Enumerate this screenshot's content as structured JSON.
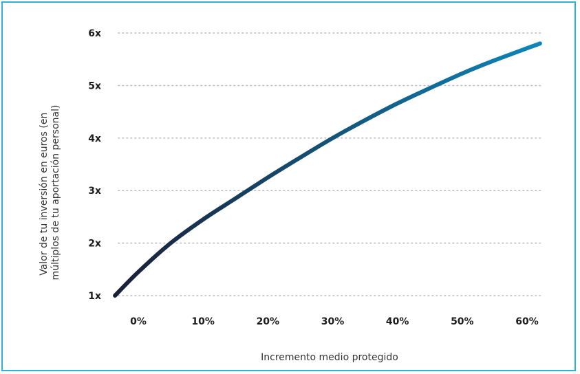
{
  "chart_data": {
    "type": "line",
    "title": "",
    "xlabel": "Incremento medio protegido",
    "ylabel_lines": [
      "Valor de tu inversión en euros (en",
      "múltiplos de tu aportación personal)"
    ],
    "x_ticks": [
      "0%",
      "10%",
      "20%",
      "30%",
      "40%",
      "50%",
      "60%"
    ],
    "y_ticks": [
      "1x",
      "2x",
      "3x",
      "4x",
      "5x",
      "6x"
    ],
    "xlim": [
      0,
      60
    ],
    "ylim": [
      1,
      6
    ],
    "grid": "horizontal-dotted",
    "series": [
      {
        "x": [
          -3.6,
          0,
          5,
          10,
          15,
          20,
          25,
          30,
          35,
          40,
          45,
          50,
          55,
          62
        ],
        "y": [
          1.0,
          1.45,
          2.0,
          2.45,
          2.85,
          3.25,
          3.63,
          4.0,
          4.34,
          4.66,
          4.95,
          5.23,
          5.48,
          5.8
        ]
      }
    ],
    "line_gradient": [
      "#1a1f36",
      "#0e86b9"
    ]
  }
}
